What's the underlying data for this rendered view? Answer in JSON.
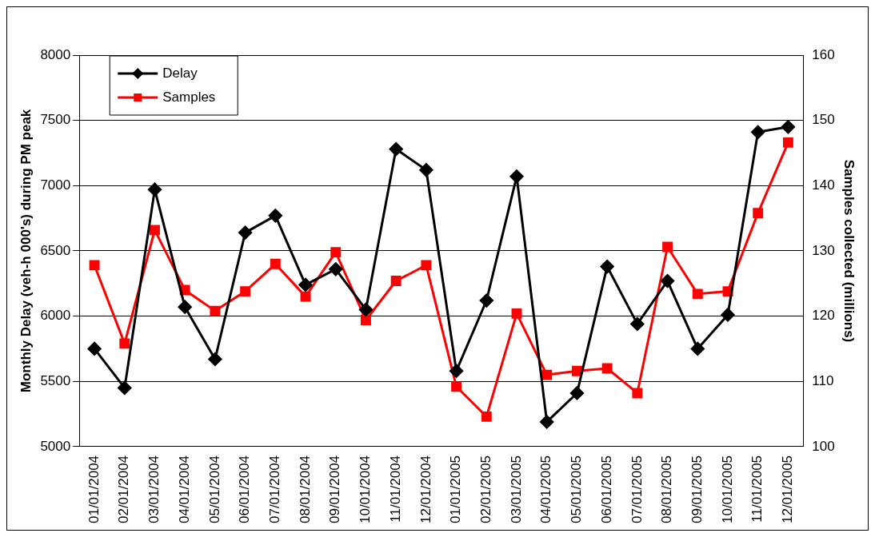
{
  "chart_data": {
    "type": "line",
    "ylabel": "Monthly Delay (veh-h 000's) during PM peak",
    "y2label": "Samples collected (millions)",
    "categories": [
      "01/01/2004",
      "02/01/2004",
      "03/01/2004",
      "04/01/2004",
      "05/01/2004",
      "06/01/2004",
      "07/01/2004",
      "08/01/2004",
      "09/01/2004",
      "10/01/2004",
      "11/01/2004",
      "12/01/2004",
      "01/01/2005",
      "02/01/2005",
      "03/01/2005",
      "04/01/2005",
      "05/01/2005",
      "06/01/2005",
      "07/01/2005",
      "08/01/2005",
      "09/01/2005",
      "10/01/2005",
      "11/01/2005",
      "12/01/2005"
    ],
    "series": [
      {
        "name": "Delay",
        "color": "#000000",
        "marker": "diamond",
        "values": [
          5750,
          5450,
          6970,
          6070,
          5670,
          6640,
          6770,
          6240,
          6360,
          6050,
          7280,
          7120,
          5580,
          6120,
          7070,
          5190,
          5410,
          6380,
          5940,
          6270,
          5750,
          6010,
          7410,
          7450
        ]
      },
      {
        "name": "Samples",
        "color": "#ff0000",
        "marker": "square",
        "axis": "y2",
        "values": [
          127.8,
          115.8,
          133.2,
          124,
          120.8,
          123.8,
          128,
          123,
          129.8,
          119.4,
          125.4,
          127.8,
          109.2,
          104.6,
          120.4,
          111,
          111.6,
          112,
          108.2,
          130.6,
          123.4,
          123.8,
          135.8,
          146.6
        ]
      }
    ],
    "ylim": [
      5000,
      8000
    ],
    "yticks": [
      5000,
      5500,
      6000,
      6500,
      7000,
      7500,
      8000
    ],
    "y2lim": [
      100,
      160
    ],
    "y2ticks": [
      100,
      110,
      120,
      130,
      140,
      150,
      160
    ],
    "grid": "y",
    "legend": "top left",
    "line_style": "solid"
  }
}
